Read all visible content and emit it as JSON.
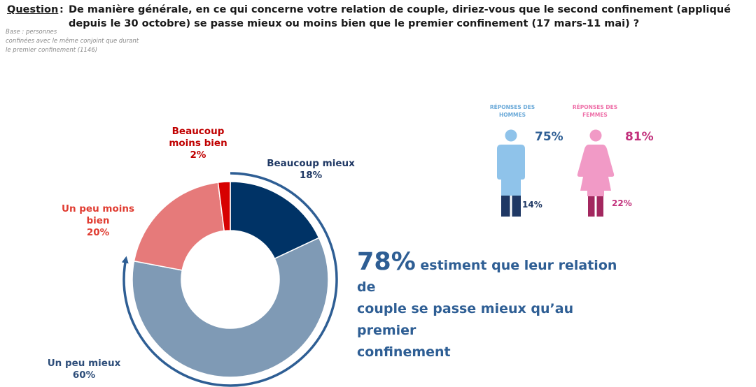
{
  "header": {
    "question_label": "Question",
    "question_separator": ":",
    "question_text": "De manière générale, en ce qui concerne votre relation de couple, diriez-vous que le second confinement (appliqué depuis le 30 octobre) se passe mieux ou moins bien que le premier confinement (17 mars-11 mai) ?",
    "base_lines": [
      "Base : personnes",
      "confinées avec le même conjoint que durant",
      "le premier confinement (1146)"
    ]
  },
  "chart_data": {
    "type": "pie",
    "style": "donut",
    "title": "",
    "categories": [
      "Beaucoup mieux",
      "Un peu mieux",
      "Un peu moins bien",
      "Beaucoup moins bien"
    ],
    "values": [
      18,
      60,
      20,
      2
    ],
    "unit": "%",
    "colors": [
      "#003366",
      "#7f9ab5",
      "#e67a7a",
      "#d70000"
    ],
    "labels": {
      "beaucoup_mieux": {
        "lines": [
          "Beaucoup mieux",
          "18%"
        ],
        "color": "#1f3864"
      },
      "un_peu_mieux": {
        "lines": [
          "Un peu mieux",
          "60%"
        ],
        "color": "#2e4e7a"
      },
      "un_peu_moins_bien": {
        "lines": [
          "Un peu moins",
          "bien",
          "20%"
        ],
        "color": "#e03c31"
      },
      "beaucoup_moins_bien": {
        "lines": [
          "Beaucoup",
          "moins bien",
          "2%"
        ],
        "color": "#c00000"
      }
    },
    "arrow_color": "#2e5e94"
  },
  "headline": {
    "big": "78%",
    "line1": " estiment que leur relation de",
    "line2": "couple se passe mieux qu’au premier",
    "line3": "confinement"
  },
  "gender": {
    "men": {
      "label_lines": [
        "RÉPONSES DES",
        "HOMMES"
      ],
      "better_pct": "75%",
      "worse_pct": "14%",
      "better_value": 75,
      "worse_value": 14,
      "icon": "man-icon",
      "body_color": "#8fc3ea",
      "legs_color": "#1f3864"
    },
    "women": {
      "label_lines": [
        "RÉPONSES DES",
        "FEMMES"
      ],
      "better_pct": "81%",
      "worse_pct": "22%",
      "better_value": 81,
      "worse_value": 22,
      "icon": "woman-icon",
      "body_color": "#f19ac6",
      "legs_color": "#a3275f"
    }
  }
}
